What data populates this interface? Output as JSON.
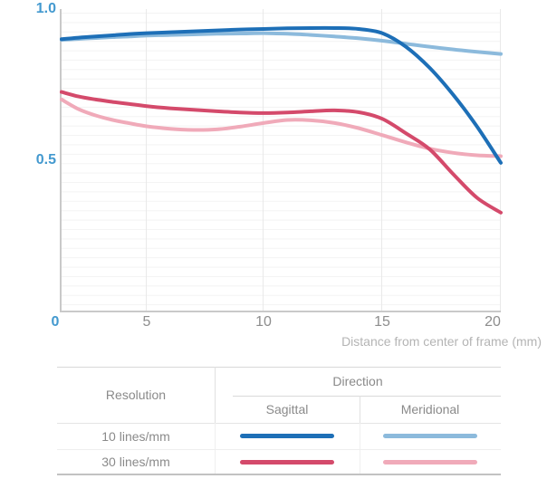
{
  "chart_data": {
    "type": "line",
    "title": "",
    "xlabel": "Distance from center of frame (mm)",
    "ylabel": "",
    "xlim": [
      0,
      20
    ],
    "ylim": [
      0,
      1.0
    ],
    "x_ticks": [
      {
        "value": 0,
        "label": "0"
      },
      {
        "value": 5,
        "label": "5"
      },
      {
        "value": 10,
        "label": "10"
      },
      {
        "value": 15,
        "label": "15"
      },
      {
        "value": 20,
        "label": "20"
      }
    ],
    "y_ticks": [
      {
        "value": 1.0,
        "label": "1.0"
      },
      {
        "value": 0.5,
        "label": "0.5"
      }
    ],
    "grid": true,
    "legend_position": "bottom-table",
    "x": [
      0,
      1,
      2,
      3,
      4,
      5,
      6,
      7,
      8,
      9,
      10,
      11,
      12,
      13,
      14,
      15,
      16,
      17,
      18,
      19,
      20
    ],
    "series": [
      {
        "name": "10 lines/mm Sagittal",
        "color": "#1d6fb7",
        "values": [
          0.9,
          0.905,
          0.909,
          0.913,
          0.917,
          0.92,
          0.923,
          0.926,
          0.929,
          0.932,
          0.934,
          0.936,
          0.937,
          0.937,
          0.934,
          0.92,
          0.875,
          0.805,
          0.715,
          0.61,
          0.49
        ]
      },
      {
        "name": "10 lines/mm Meridional",
        "color": "#8cbadc",
        "values": [
          0.898,
          0.901,
          0.904,
          0.907,
          0.909,
          0.912,
          0.914,
          0.916,
          0.918,
          0.919,
          0.92,
          0.918,
          0.914,
          0.909,
          0.903,
          0.895,
          0.885,
          0.875,
          0.866,
          0.858,
          0.851
        ]
      },
      {
        "name": "30 lines/mm Sagittal",
        "color": "#d44a6b",
        "values": [
          0.725,
          0.71,
          0.7,
          0.692,
          0.685,
          0.678,
          0.671,
          0.666,
          0.661,
          0.657,
          0.655,
          0.657,
          0.661,
          0.664,
          0.658,
          0.636,
          0.588,
          0.535,
          0.452,
          0.374,
          0.325
        ]
      },
      {
        "name": "30 lines/mm Meridional",
        "color": "#f0aab9",
        "values": [
          0.7,
          0.668,
          0.647,
          0.632,
          0.621,
          0.611,
          0.603,
          0.599,
          0.601,
          0.61,
          0.622,
          0.632,
          0.631,
          0.622,
          0.605,
          0.582,
          0.558,
          0.537,
          0.523,
          0.515,
          0.512
        ]
      }
    ]
  },
  "legend_table": {
    "resolution_header": "Resolution",
    "direction_header": "Direction",
    "sagittal_header": "Sagittal",
    "meridional_header": "Meridional",
    "rows": [
      {
        "label": "10 lines/mm"
      },
      {
        "label": "30 lines/mm"
      }
    ]
  },
  "colors": {
    "accent_axis_label": "#4399cf",
    "tick_label_gray": "#8d8d8d",
    "caption_gray": "#b4b4b4",
    "axis_line": "#c9c9c9",
    "table_text": "#8a8a8a"
  }
}
